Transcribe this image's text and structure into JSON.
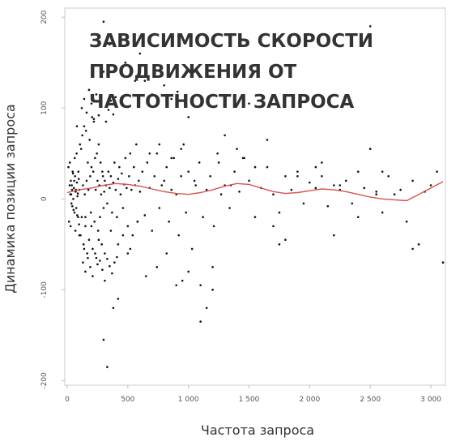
{
  "chart_data": {
    "type": "scatter",
    "title_lines": [
      "ЗАВИСИМОСТЬ СКОРОСТИ",
      "ПРОДВИЖЕНИЯ ОТ",
      "ЧАСТОТНОСТИ ЗАПРОСА"
    ],
    "xlabel": "Частота запроса",
    "ylabel": "Динамика позиции запроса",
    "xlim": [
      -20,
      3120
    ],
    "ylim": [
      -205,
      210
    ],
    "x_ticks": [
      {
        "value": 0,
        "label": "0"
      },
      {
        "value": 500,
        "label": "500"
      },
      {
        "value": 1000,
        "label": "1 000"
      },
      {
        "value": 1500,
        "label": "1 500"
      },
      {
        "value": 2000,
        "label": "2 000"
      },
      {
        "value": 2500,
        "label": "2 500"
      },
      {
        "value": 3000,
        "label": "3 000"
      }
    ],
    "y_ticks": [
      {
        "value": 200,
        "label": "200"
      },
      {
        "value": 100,
        "label": "100"
      },
      {
        "value": 0,
        "label": "0"
      },
      {
        "value": -100,
        "label": "-100"
      },
      {
        "value": -200,
        "label": "-200"
      }
    ],
    "grid": false,
    "colors": {
      "points": "#111111",
      "trend": "#d9534f",
      "frame": "#cccccc"
    },
    "series": [
      {
        "kind": "points",
        "x": [
          20,
          25,
          30,
          35,
          40,
          45,
          50,
          55,
          60,
          65,
          70,
          75,
          80,
          85,
          90,
          95,
          100,
          10,
          15,
          22,
          28,
          33,
          38,
          42,
          48,
          52,
          58,
          62,
          68,
          72,
          78,
          82,
          88,
          92,
          98,
          105,
          110,
          115,
          120,
          125,
          130,
          135,
          140,
          145,
          150,
          155,
          160,
          165,
          170,
          175,
          180,
          185,
          190,
          195,
          200,
          205,
          210,
          215,
          220,
          225,
          230,
          235,
          240,
          245,
          250,
          255,
          260,
          265,
          270,
          275,
          280,
          285,
          290,
          295,
          300,
          120,
          140,
          160,
          180,
          200,
          220,
          240,
          260,
          280,
          300,
          320,
          340,
          360,
          380,
          400,
          130,
          150,
          170,
          190,
          210,
          230,
          250,
          270,
          290,
          310,
          330,
          350,
          370,
          390,
          410,
          305,
          310,
          320,
          330,
          340,
          350,
          360,
          370,
          380,
          390,
          400,
          410,
          420,
          430,
          440,
          450,
          460,
          470,
          480,
          490,
          500,
          510,
          520,
          530,
          540,
          550,
          560,
          570,
          580,
          590,
          600,
          620,
          640,
          660,
          680,
          700,
          720,
          740,
          760,
          780,
          800,
          820,
          840,
          860,
          880,
          900,
          920,
          940,
          960,
          980,
          1000,
          1030,
          1060,
          1090,
          1120,
          1150,
          1180,
          1210,
          1240,
          1270,
          1300,
          1340,
          1380,
          1420,
          1460,
          1500,
          1550,
          1600,
          1650,
          1700,
          1750,
          1800,
          1850,
          1900,
          1950,
          2000,
          2050,
          2100,
          2150,
          2200,
          2250,
          2300,
          2350,
          2400,
          2450,
          2500,
          2550,
          2600,
          2650,
          2700,
          2750,
          2800,
          2850,
          2900,
          2950,
          3000,
          3050,
          3100,
          300,
          330,
          80,
          150,
          380,
          420,
          500,
          560,
          650,
          740,
          820,
          900,
          950,
          1000,
          1100,
          1200,
          1450,
          1750,
          2050,
          2500,
          2500,
          2600,
          2850,
          3100,
          300,
          350,
          480,
          600,
          640,
          700,
          800,
          860,
          910,
          1000,
          1100,
          1150,
          1200,
          1300,
          1400,
          1500,
          1650,
          1800,
          2100,
          2250,
          100,
          140,
          200,
          260,
          310,
          360,
          420,
          460,
          520,
          580,
          680,
          760,
          860,
          940,
          1050,
          1250,
          1350,
          1550,
          1700,
          1900,
          2200,
          2400,
          2550
        ],
        "y": [
          15,
          5,
          20,
          -5,
          10,
          30,
          0,
          12,
          -15,
          25,
          8,
          -10,
          18,
          3,
          -20,
          22,
          10,
          35,
          -25,
          40,
          -30,
          5,
          15,
          -8,
          28,
          -12,
          20,
          45,
          -35,
          10,
          50,
          -18,
          6,
          30,
          -28,
          60,
          -40,
          55,
          -20,
          70,
          15,
          -50,
          80,
          5,
          -30,
          75,
          20,
          -60,
          40,
          10,
          -45,
          65,
          25,
          -15,
          35,
          90,
          -55,
          30,
          85,
          -25,
          45,
          10,
          -65,
          50,
          20,
          -35,
          60,
          15,
          -20,
          40,
          5,
          -50,
          30,
          25,
          -10,
          100,
          110,
          95,
          120,
          105,
          88,
          115,
          92,
          102,
          140,
          85,
          98,
          108,
          93,
          112,
          -70,
          -80,
          -65,
          -75,
          -85,
          -60,
          -72,
          -68,
          -78,
          -90,
          -66,
          -74,
          -82,
          -70,
          -64,
          8,
          20,
          15,
          -5,
          30,
          12,
          25,
          -15,
          18,
          40,
          10,
          -20,
          22,
          35,
          5,
          28,
          -10,
          16,
          45,
          12,
          -30,
          25,
          50,
          10,
          -40,
          35,
          15,
          60,
          -25,
          20,
          8,
          30,
          -18,
          40,
          12,
          -35,
          25,
          50,
          -10,
          15,
          20,
          35,
          -25,
          10,
          45,
          5,
          -40,
          25,
          60,
          -15,
          30,
          -55,
          15,
          40,
          -20,
          10,
          25,
          -30,
          50,
          5,
          15,
          -10,
          30,
          8,
          45,
          20,
          -20,
          12,
          35,
          5,
          -15,
          25,
          10,
          30,
          -5,
          18,
          12,
          25,
          -8,
          15,
          10,
          20,
          -5,
          30,
          12,
          55,
          8,
          -15,
          25,
          5,
          10,
          -25,
          20,
          -50,
          8,
          15,
          30,
          -70,
          -155,
          -185,
          80,
          -20,
          -120,
          -110,
          -60,
          130,
          -85,
          -75,
          -60,
          -95,
          -90,
          -80,
          -95,
          -75,
          45,
          -50,
          35,
          190,
          55,
          30,
          -55,
          -70,
          195,
          170,
          150,
          160,
          130,
          115,
          125,
          110,
          118,
          90,
          -135,
          -120,
          -100,
          70,
          55,
          105,
          65,
          -45,
          40,
          15,
          -40,
          -55,
          -30,
          -45,
          -60,
          -35,
          -50,
          -40,
          -55,
          -25,
          50,
          60,
          45,
          55,
          20,
          40,
          15,
          35,
          -30,
          25,
          -40,
          -20,
          5
        ]
      },
      {
        "kind": "trend",
        "x": [
          0,
          100,
          200,
          300,
          400,
          500,
          600,
          700,
          800,
          900,
          1000,
          1100,
          1200,
          1300,
          1400,
          1500,
          1600,
          1700,
          1800,
          1900,
          2000,
          2100,
          2200,
          2300,
          2400,
          2500,
          2600,
          2700,
          2800,
          2900,
          3000,
          3100
        ],
        "y": [
          7,
          10,
          12,
          15,
          17,
          16,
          14,
          11,
          8,
          6,
          5,
          7,
          10,
          14,
          17,
          16,
          12,
          8,
          6,
          7,
          9,
          11,
          10,
          8,
          5,
          2,
          0,
          -1,
          -2,
          5,
          12,
          19
        ]
      }
    ]
  }
}
